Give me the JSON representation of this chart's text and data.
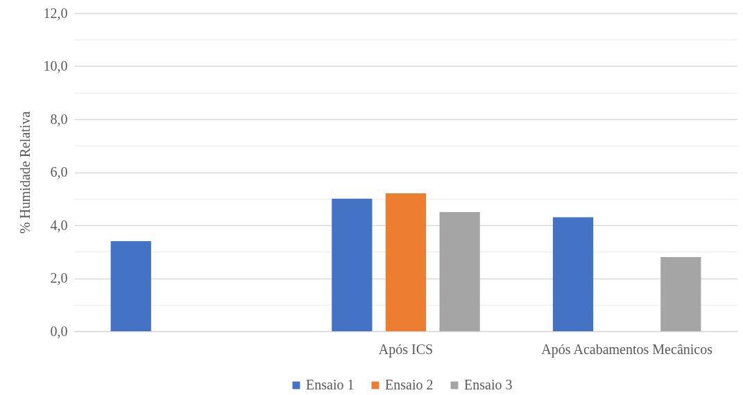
{
  "chart_data": {
    "type": "bar",
    "ylabel": "% Humidade Relativa",
    "categories": [
      null,
      "Após ICS",
      "Após Acabamentos Mecânicos"
    ],
    "series": [
      {
        "name": "Ensaio 1",
        "color": "#4472c4",
        "values": [
          3.4,
          5.0,
          4.3
        ]
      },
      {
        "name": "Ensaio 2",
        "color": "#ed7d31",
        "values": [
          null,
          5.2,
          null
        ]
      },
      {
        "name": "Ensaio 3",
        "color": "#a5a5a5",
        "values": [
          null,
          4.5,
          2.8
        ]
      }
    ],
    "ylim": [
      0,
      12
    ],
    "yticks": [
      {
        "value": 0,
        "label": "0,0"
      },
      {
        "value": 1,
        "label": null
      },
      {
        "value": 2,
        "label": "2,0"
      },
      {
        "value": 3,
        "label": null
      },
      {
        "value": 4,
        "label": "4,0"
      },
      {
        "value": 5,
        "label": null
      },
      {
        "value": 6,
        "label": "6,0"
      },
      {
        "value": 7,
        "label": null
      },
      {
        "value": 8,
        "label": "8,0"
      },
      {
        "value": 9,
        "label": null
      },
      {
        "value": 10,
        "label": "10,0"
      },
      {
        "value": 11,
        "label": null
      },
      {
        "value": 12,
        "label": "12,0"
      }
    ],
    "grid": "y",
    "legend": "bottom"
  }
}
